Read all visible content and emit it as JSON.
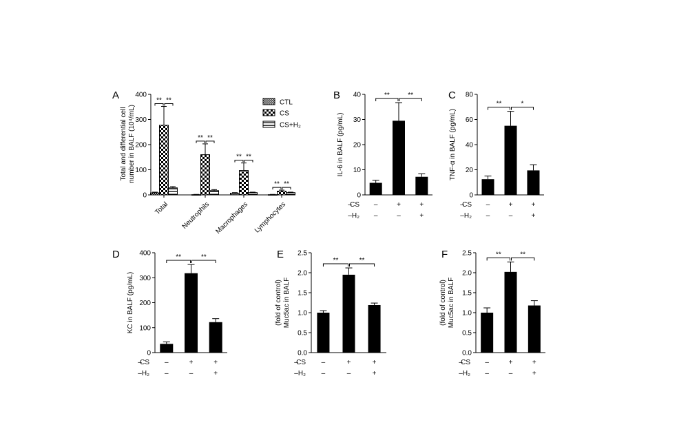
{
  "chart_data": [
    {
      "panel": "A",
      "type": "bar",
      "ylabel": [
        "Total and differential cell",
        "number in BALF (10⁴/mL)"
      ],
      "ylim": [
        0,
        400
      ],
      "yticks": [
        0,
        100,
        200,
        300,
        400
      ],
      "categories": [
        "Total",
        "Neutrophils",
        "Macrophages",
        "Lymphocytes"
      ],
      "legend_position": "top-right",
      "series": [
        {
          "name": "CTL",
          "values": [
            8,
            1,
            7,
            1
          ],
          "errors": [
            3,
            1,
            2,
            1
          ],
          "pattern": "dense-check"
        },
        {
          "name": "CS",
          "values": [
            277,
            160,
            97,
            15
          ],
          "errors": [
            75,
            43,
            30,
            4
          ],
          "pattern": "check"
        },
        {
          "name": "CS+H₂",
          "values": [
            28,
            17,
            9,
            9
          ],
          "errors": [
            5,
            4,
            2,
            2
          ],
          "pattern": "hstripe"
        }
      ],
      "significance": [
        {
          "category": 0,
          "labels": [
            "**",
            "**"
          ]
        },
        {
          "category": 1,
          "labels": [
            "**",
            "**"
          ]
        },
        {
          "category": 2,
          "labels": [
            "**",
            "**"
          ]
        },
        {
          "category": 3,
          "labels": [
            "**",
            "**"
          ]
        }
      ]
    },
    {
      "panel": "B",
      "type": "bar",
      "ylabel": [
        "IL-6 in BALF (pg/mL)"
      ],
      "ylim": [
        0,
        40
      ],
      "yticks": [
        0,
        10,
        20,
        30,
        40
      ],
      "values": [
        4.8,
        29.5,
        7.2
      ],
      "errors": [
        1.0,
        7.2,
        1.2
      ],
      "conditions": [
        {
          "name": "CS",
          "marks": [
            "–",
            "+",
            "+"
          ]
        },
        {
          "name": "H₂",
          "marks": [
            "–",
            "–",
            "+"
          ]
        }
      ],
      "significance": [
        {
          "from": 0,
          "to": 1,
          "label": "**"
        },
        {
          "from": 1,
          "to": 2,
          "label": "**"
        }
      ]
    },
    {
      "panel": "C",
      "type": "bar",
      "ylabel": [
        "TNF-α in BALF (pg/mL)"
      ],
      "ylim": [
        0,
        80
      ],
      "yticks": [
        0,
        20,
        40,
        60,
        80
      ],
      "values": [
        12.5,
        55,
        19.5
      ],
      "errors": [
        2.5,
        11.5,
        4.5
      ],
      "conditions": [
        {
          "name": "CS",
          "marks": [
            "–",
            "+",
            "+"
          ]
        },
        {
          "name": "H₂",
          "marks": [
            "–",
            "–",
            "+"
          ]
        }
      ],
      "significance": [
        {
          "from": 0,
          "to": 1,
          "label": "**"
        },
        {
          "from": 1,
          "to": 2,
          "label": "*"
        }
      ]
    },
    {
      "panel": "D",
      "type": "bar",
      "ylabel": [
        "KC in BALF (pg/mL)"
      ],
      "ylim": [
        0,
        400
      ],
      "yticks": [
        0,
        100,
        200,
        300,
        400
      ],
      "values": [
        35,
        318,
        122
      ],
      "errors": [
        8,
        35,
        14
      ],
      "conditions": [
        {
          "name": "CS",
          "marks": [
            "–",
            "+",
            "+"
          ]
        },
        {
          "name": "H₂",
          "marks": [
            "–",
            "–",
            "+"
          ]
        }
      ],
      "significance": [
        {
          "from": 0,
          "to": 1,
          "label": "**"
        },
        {
          "from": 1,
          "to": 2,
          "label": "**"
        }
      ]
    },
    {
      "panel": "E",
      "type": "bar",
      "ylabel": [
        "Muc5ac in BALF",
        "(fold of control)"
      ],
      "ylim": [
        0,
        2.5
      ],
      "yticks": [
        0.0,
        0.5,
        1.0,
        1.5,
        2.0,
        2.5
      ],
      "values": [
        1.0,
        1.95,
        1.19
      ],
      "errors": [
        0.05,
        0.17,
        0.05
      ],
      "conditions": [
        {
          "name": "CS",
          "marks": [
            "–",
            "+",
            "+"
          ]
        },
        {
          "name": "H₂",
          "marks": [
            "–",
            "–",
            "+"
          ]
        }
      ],
      "significance": [
        {
          "from": 0,
          "to": 1,
          "label": "**"
        },
        {
          "from": 1,
          "to": 2,
          "label": "**"
        }
      ]
    },
    {
      "panel": "F",
      "type": "bar",
      "ylabel": [
        "Muc5ac in BALF",
        "(fold of control)"
      ],
      "ylim": [
        0,
        2.5
      ],
      "yticks": [
        0.0,
        0.5,
        1.0,
        1.5,
        2.0,
        2.5
      ],
      "values": [
        1.0,
        2.02,
        1.18
      ],
      "errors": [
        0.12,
        0.25,
        0.12
      ],
      "conditions": [
        {
          "name": "CS",
          "marks": [
            "–",
            "+",
            "+"
          ]
        },
        {
          "name": "H₂",
          "marks": [
            "–",
            "–",
            "+"
          ]
        }
      ],
      "significance": [
        {
          "from": 0,
          "to": 1,
          "label": "**"
        },
        {
          "from": 1,
          "to": 2,
          "label": "**"
        }
      ]
    }
  ]
}
